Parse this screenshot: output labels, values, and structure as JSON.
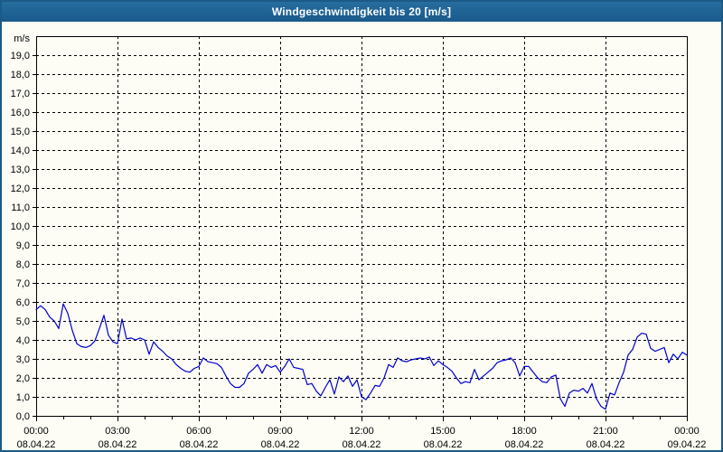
{
  "window": {
    "title": "Windgeschwindigkeit bis 20 [m/s]"
  },
  "colors": {
    "window_border": "#1b5a87",
    "titlebar_bg": "#1e6294",
    "titlebar_text": "#ffffff",
    "page_bg": "#fdfdf6",
    "axis": "#000000",
    "grid": "#000000",
    "line": "#0000cc",
    "tick_text": "#000000"
  },
  "chart_data": {
    "type": "line",
    "title": "Windgeschwindigkeit bis 20 [m/s]",
    "unit_label": "m/s",
    "ylim": [
      0,
      20
    ],
    "xlim_hours": [
      0,
      24
    ],
    "grid": {
      "horizontal_every": 1,
      "vertical_every_hours": 3,
      "style": "dashed",
      "on": true
    },
    "y_tick_labels": [
      "0,0",
      "1,0",
      "2,0",
      "3,0",
      "4,0",
      "5,0",
      "6,0",
      "7,0",
      "8,0",
      "9,0",
      "10,0",
      "11,0",
      "12,0",
      "13,0",
      "14,0",
      "15,0",
      "16,0",
      "17,0",
      "18,0",
      "19,0"
    ],
    "x_ticks": [
      {
        "time": "00:00",
        "date": "08.04.22",
        "hour": 0
      },
      {
        "time": "03:00",
        "date": "08.04.22",
        "hour": 3
      },
      {
        "time": "06:00",
        "date": "08.04.22",
        "hour": 6
      },
      {
        "time": "09:00",
        "date": "08.04.22",
        "hour": 9
      },
      {
        "time": "12:00",
        "date": "08.04.22",
        "hour": 12
      },
      {
        "time": "15:00",
        "date": "08.04.22",
        "hour": 15
      },
      {
        "time": "18:00",
        "date": "08.04.22",
        "hour": 18
      },
      {
        "time": "21:00",
        "date": "08.04.22",
        "hour": 21
      },
      {
        "time": "00:00",
        "date": "09.04.22",
        "hour": 24
      }
    ],
    "x_minor_tick_every_hours": 1,
    "series": [
      {
        "name": "Windgeschwindigkeit",
        "color": "#0000cc",
        "x_start_hour": 0,
        "x_step_minutes": 10,
        "values": [
          5.6,
          5.8,
          5.6,
          5.2,
          5.0,
          4.6,
          5.9,
          5.4,
          4.5,
          3.8,
          3.65,
          3.6,
          3.7,
          3.95,
          4.6,
          5.3,
          4.25,
          3.9,
          3.8,
          5.1,
          4.05,
          4.1,
          4.0,
          4.1,
          4.0,
          3.25,
          3.9,
          3.6,
          3.4,
          3.15,
          3.0,
          2.7,
          2.5,
          2.35,
          2.3,
          2.5,
          2.6,
          3.05,
          2.85,
          2.8,
          2.75,
          2.55,
          2.1,
          1.7,
          1.5,
          1.5,
          1.7,
          2.25,
          2.45,
          2.7,
          2.25,
          2.7,
          2.55,
          2.65,
          2.3,
          2.6,
          3.0,
          2.55,
          2.5,
          2.45,
          1.65,
          1.7,
          1.3,
          1.05,
          1.5,
          1.9,
          1.15,
          2.05,
          1.8,
          2.1,
          1.55,
          1.9,
          1.0,
          0.85,
          1.2,
          1.6,
          1.55,
          2.0,
          2.7,
          2.55,
          3.05,
          2.9,
          2.85,
          2.95,
          3.0,
          3.05,
          3.0,
          3.1,
          2.65,
          2.9,
          2.7,
          2.55,
          2.35,
          2.0,
          1.7,
          1.8,
          1.75,
          2.45,
          1.9,
          2.1,
          2.3,
          2.5,
          2.8,
          2.9,
          2.95,
          3.05,
          2.8,
          2.1,
          2.6,
          2.6,
          2.3,
          2.0,
          1.8,
          1.75,
          2.05,
          2.15,
          0.9,
          0.5,
          1.2,
          1.35,
          1.3,
          1.45,
          1.2,
          1.7,
          0.9,
          0.5,
          0.35,
          1.2,
          1.1,
          1.75,
          2.3,
          3.2,
          3.5,
          4.15,
          4.35,
          4.3,
          3.55,
          3.4,
          3.5,
          3.6,
          2.8,
          3.25,
          3.0,
          3.35,
          3.2
        ]
      }
    ]
  }
}
